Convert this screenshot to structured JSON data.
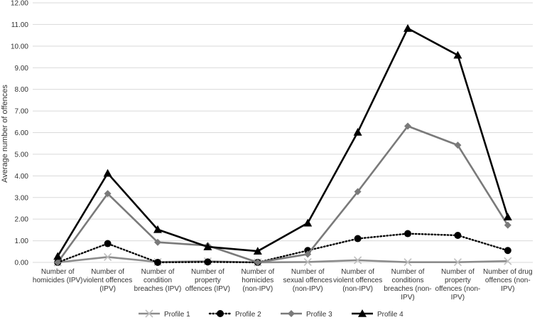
{
  "chart_data": {
    "type": "line",
    "ylabel": "Average number of offences",
    "xlabel": "",
    "ylim": [
      0,
      12
    ],
    "ytick_step": 1,
    "ytick_format_decimals": 2,
    "grid": "horizontal",
    "legend_position": "bottom",
    "categories": [
      [
        "Number of",
        "homicides (IPV)"
      ],
      [
        "Number of",
        "violent offences",
        "(IPV)"
      ],
      [
        "Number of",
        "condition",
        "breaches (IPV)"
      ],
      [
        "Number of",
        "property",
        "offences (IPV)"
      ],
      [
        "Number of",
        "homicides",
        "(non-IPV)"
      ],
      [
        "Number of",
        "sexual offences",
        "(non-IPV)"
      ],
      [
        "Number of",
        "violent offences",
        "(non-IPV)"
      ],
      [
        "Number of",
        "conditions",
        "breaches (non-",
        "IPV)"
      ],
      [
        "Number of",
        "property",
        "offences (non-",
        "IPV)"
      ],
      [
        "Number of drug",
        "offences (non-",
        "IPV)"
      ]
    ],
    "series": [
      {
        "name": "Profile 1",
        "color": "#8c8c8c",
        "line_style": "solid",
        "marker": "x",
        "values": [
          0.0,
          0.25,
          0.02,
          0.05,
          0.0,
          0.02,
          0.1,
          0.01,
          0.01,
          0.06
        ]
      },
      {
        "name": "Profile 2",
        "color": "#000000",
        "line_style": "dotted",
        "marker": "circle",
        "values": [
          0.0,
          0.87,
          0.0,
          0.02,
          0.0,
          0.55,
          1.1,
          1.33,
          1.25,
          0.55
        ]
      },
      {
        "name": "Profile 3",
        "color": "#7a7a7a",
        "line_style": "solid",
        "marker": "diamond",
        "values": [
          0.0,
          3.18,
          0.93,
          0.78,
          0.0,
          0.38,
          3.27,
          6.3,
          5.42,
          1.72
        ]
      },
      {
        "name": "Profile 4",
        "color": "#000000",
        "line_style": "solid",
        "marker": "triangle",
        "values": [
          0.28,
          4.12,
          1.52,
          0.72,
          0.52,
          1.82,
          6.02,
          10.82,
          9.58,
          2.1
        ]
      }
    ]
  }
}
